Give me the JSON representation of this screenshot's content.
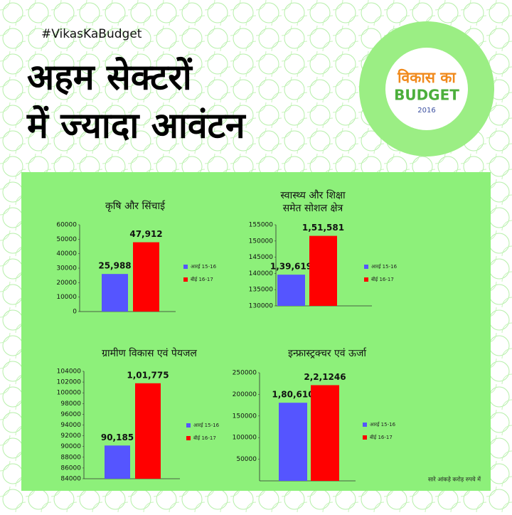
{
  "hashtag": "#VikasKaBudget",
  "title": [
    "अहम सेक्टरों",
    "में ज्यादा आवंटन"
  ],
  "badge": {
    "line1": "विकास का",
    "line2": "BUDGET",
    "year": "2016"
  },
  "footnote": "सारे आंकड़े करोड़ रुपये में",
  "chart_data": [
    {
      "type": "bar",
      "title": [
        "कृषि और सिंचाई"
      ],
      "series": [
        {
          "name": "आरई 15-16",
          "color": "#5555ff",
          "values": [
            25988
          ],
          "value_labels": [
            "25,988"
          ]
        },
        {
          "name": "बीई 16-17",
          "color": "#ff0000",
          "values": [
            47912
          ],
          "value_labels": [
            "47,912"
          ]
        }
      ],
      "ylim": [
        0,
        60000
      ],
      "yticks": [
        0,
        10000,
        20000,
        30000,
        40000,
        50000,
        60000
      ]
    },
    {
      "type": "bar",
      "title": [
        "स्वास्थ्य और शिक्षा",
        "समेत सोशल क्षेत्र"
      ],
      "series": [
        {
          "name": "आरई 15-16",
          "color": "#5555ff",
          "values": [
            139619
          ],
          "value_labels": [
            "1,39,619"
          ]
        },
        {
          "name": "बीई 16-17",
          "color": "#ff0000",
          "values": [
            151581
          ],
          "value_labels": [
            "1,51,581"
          ]
        }
      ],
      "ylim": [
        130000,
        155000
      ],
      "yticks": [
        130000,
        135000,
        140000,
        145000,
        150000,
        155000
      ]
    },
    {
      "type": "bar",
      "title": [
        "ग्रामीण विकास एवं पेयजल"
      ],
      "series": [
        {
          "name": "आरई 15-16",
          "color": "#5555ff",
          "values": [
            90185
          ],
          "value_labels": [
            "90,185"
          ]
        },
        {
          "name": "बीई 16-17",
          "color": "#ff0000",
          "values": [
            101775
          ],
          "value_labels": [
            "1,01,775"
          ]
        }
      ],
      "ylim": [
        84000,
        104000
      ],
      "yticks": [
        84000,
        86000,
        88000,
        90000,
        92000,
        94000,
        96000,
        98000,
        100000,
        102000,
        104000
      ]
    },
    {
      "type": "bar",
      "title": [
        "इन्फ्रास्ट्रक्चर एवं ऊर्जा"
      ],
      "series": [
        {
          "name": "आरई 15-16",
          "color": "#5555ff",
          "values": [
            180610
          ],
          "value_labels": [
            "1,80,610"
          ]
        },
        {
          "name": "बीई 16-17",
          "color": "#ff0000",
          "values": [
            221246
          ],
          "value_labels": [
            "2,2,1246"
          ]
        }
      ],
      "ylim": [
        0,
        250000
      ],
      "yticks": [
        50000,
        100000,
        150000,
        200000,
        250000
      ]
    }
  ]
}
